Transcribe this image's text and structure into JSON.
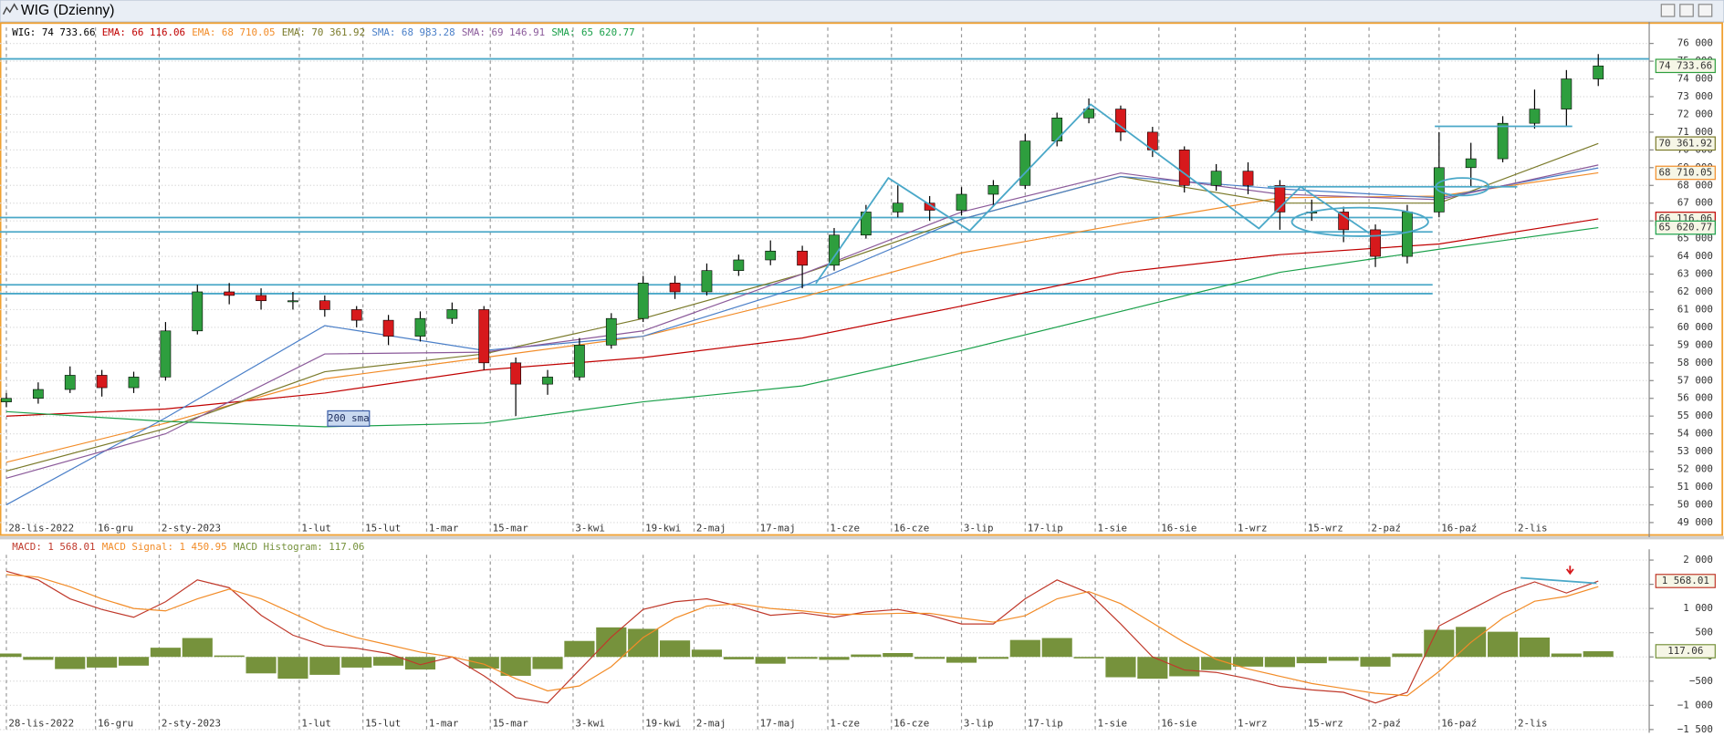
{
  "window": {
    "title": "WIG (Dzienny)"
  },
  "chart_data": [
    {
      "type": "candlestick",
      "xlim": [
        -1,
        258
      ],
      "ylim": [
        48300,
        76900
      ],
      "xticks": [
        {
          "value": 0,
          "label": "28-lis-2022"
        },
        {
          "value": 14,
          "label": "16-gru"
        },
        {
          "value": 24,
          "label": "2-sty-2023"
        },
        {
          "value": 46,
          "label": "1-lut"
        },
        {
          "value": 56,
          "label": "15-lut"
        },
        {
          "value": 66,
          "label": "1-mar"
        },
        {
          "value": 76,
          "label": "15-mar"
        },
        {
          "value": 89,
          "label": "3-kwi"
        },
        {
          "value": 100,
          "label": "19-kwi"
        },
        {
          "value": 108,
          "label": "2-maj"
        },
        {
          "value": 118,
          "label": "17-maj"
        },
        {
          "value": 129,
          "label": "1-cze"
        },
        {
          "value": 139,
          "label": "16-cze"
        },
        {
          "value": 150,
          "label": "3-lip"
        },
        {
          "value": 160,
          "label": "17-lip"
        },
        {
          "value": 171,
          "label": "1-sie"
        },
        {
          "value": 181,
          "label": "16-sie"
        },
        {
          "value": 193,
          "label": "1-wrz"
        },
        {
          "value": 204,
          "label": "15-wrz"
        },
        {
          "value": 214,
          "label": "2-paź"
        },
        {
          "value": 225,
          "label": "16-paź"
        },
        {
          "value": 237,
          "label": "2-lis"
        }
      ],
      "yticks": [
        {
          "value": 76000,
          "label": "76 000"
        },
        {
          "value": 75000,
          "label": "75 000"
        },
        {
          "value": 74000,
          "label": "74 000"
        },
        {
          "value": 73000,
          "label": "73 000"
        },
        {
          "value": 72000,
          "label": "72 000"
        },
        {
          "value": 71000,
          "label": "71 000"
        },
        {
          "value": 70000,
          "label": "70 000"
        },
        {
          "value": 69000,
          "label": "69 000"
        },
        {
          "value": 68000,
          "label": "68 000"
        },
        {
          "value": 67000,
          "label": "67 000"
        },
        {
          "value": 66000,
          "label": "66 000"
        },
        {
          "value": 65000,
          "label": "65 000"
        },
        {
          "value": 64000,
          "label": "64 000"
        },
        {
          "value": 63000,
          "label": "63 000"
        },
        {
          "value": 62000,
          "label": "62 000"
        },
        {
          "value": 61000,
          "label": "61 000"
        },
        {
          "value": 60000,
          "label": "60 000"
        },
        {
          "value": 59000,
          "label": "59 000"
        },
        {
          "value": 58000,
          "label": "58 000"
        },
        {
          "value": 57000,
          "label": "57 000"
        },
        {
          "value": 56000,
          "label": "56 000"
        },
        {
          "value": 55000,
          "label": "55 000"
        },
        {
          "value": 54000,
          "label": "54 000"
        },
        {
          "value": 53000,
          "label": "53 000"
        },
        {
          "value": 52000,
          "label": "52 000"
        },
        {
          "value": 51000,
          "label": "51 000"
        },
        {
          "value": 50000,
          "label": "50 000"
        },
        {
          "value": 49000,
          "label": "49 000"
        }
      ],
      "grid": true,
      "candles": {
        "legend": "WIG: 74 733.66",
        "color": "#000000",
        "up_color": "#2e9e3e",
        "down_color": "#d7191c",
        "last_label": "74 733.66",
        "x": [
          0,
          5,
          10,
          15,
          20,
          25,
          30,
          35,
          40,
          45,
          50,
          55,
          60,
          65,
          70,
          75,
          80,
          85,
          90,
          95,
          100,
          105,
          110,
          115,
          120,
          125,
          130,
          135,
          140,
          145,
          150,
          155,
          160,
          165,
          170,
          175,
          180,
          185,
          190,
          195,
          200,
          205,
          210,
          215,
          220,
          225,
          230,
          235,
          240,
          245,
          250
        ],
        "open": [
          55800,
          56000,
          56500,
          57300,
          56600,
          57200,
          59800,
          62000,
          61800,
          61500,
          61500,
          61000,
          60400,
          59500,
          60500,
          61000,
          58000,
          56800,
          57200,
          59000,
          60500,
          62500,
          62000,
          63200,
          63800,
          64300,
          63500,
          65200,
          66500,
          67000,
          66600,
          67500,
          68000,
          70500,
          71800,
          72300,
          71000,
          70000,
          68000,
          68800,
          68000,
          66500,
          66500,
          65500,
          64000,
          66500,
          69000,
          69500,
          71500,
          72300,
          74000
        ],
        "high": [
          56300,
          56900,
          57800,
          57600,
          57500,
          60300,
          62400,
          62500,
          62200,
          62000,
          61800,
          61200,
          60700,
          60900,
          61400,
          61200,
          58300,
          57600,
          59400,
          60800,
          62900,
          62900,
          63600,
          64100,
          64900,
          64600,
          65600,
          66900,
          68000,
          67400,
          67900,
          68300,
          70900,
          72100,
          72900,
          72500,
          71300,
          70200,
          69200,
          69300,
          68300,
          67200,
          66800,
          65800,
          66900,
          71000,
          70400,
          71900,
          73400,
          74500,
          75400
        ],
        "low": [
          55500,
          55700,
          56300,
          56100,
          56300,
          57000,
          59600,
          61300,
          61000,
          61000,
          60600,
          60000,
          59000,
          59200,
          60200,
          57600,
          55000,
          56200,
          57000,
          58800,
          60300,
          61600,
          61800,
          62900,
          63500,
          62200,
          63200,
          65000,
          66200,
          66000,
          66300,
          66800,
          67800,
          70200,
          71500,
          70500,
          69600,
          67600,
          67700,
          67500,
          65500,
          66000,
          64800,
          63400,
          63600,
          66200,
          67900,
          69300,
          71200,
          71300,
          73600
        ],
        "close": [
          56000,
          56500,
          57300,
          56600,
          57200,
          59800,
          62000,
          61800,
          61500,
          61500,
          61000,
          60400,
          59500,
          60500,
          61000,
          58000,
          56800,
          57200,
          59000,
          60500,
          62500,
          62000,
          63200,
          63800,
          64300,
          63500,
          65200,
          66500,
          67000,
          66600,
          67500,
          68000,
          70500,
          71800,
          72300,
          71000,
          70000,
          68000,
          68800,
          68000,
          66500,
          66500,
          65500,
          64000,
          66500,
          69000,
          69500,
          71500,
          72300,
          74000,
          74733.66
        ]
      },
      "x": [
        0,
        25,
        50,
        75,
        100,
        125,
        150,
        175,
        200,
        225,
        250
      ],
      "series": [
        {
          "legend": "EMA: 66 116.06",
          "color": "#c00000",
          "last_label": "66 116.06",
          "values": [
            55000,
            55400,
            56300,
            57600,
            58300,
            59400,
            61200,
            63100,
            64100,
            64700,
            66116.06
          ]
        },
        {
          "legend": "EMA: 68 710.05",
          "color": "#f28c28",
          "last_label": "68 710.05",
          "values": [
            52400,
            54600,
            57100,
            58300,
            59500,
            61700,
            64200,
            65800,
            67300,
            67400,
            68710.05
          ]
        },
        {
          "legend": "EMA: 70 361.92",
          "color": "#7a7a2a",
          "last_label": "70 361.92",
          "values": [
            51900,
            54300,
            57500,
            58500,
            60500,
            63000,
            66100,
            68500,
            67000,
            67000,
            70361.92
          ]
        },
        {
          "legend": "SMA: 68 983.28",
          "color": "#4a7fc8",
          "values": [
            50000,
            54900,
            60100,
            58700,
            59500,
            62300,
            66100,
            68500,
            67800,
            67300,
            68983.28
          ]
        },
        {
          "legend": "SMA: 69 146.91",
          "color": "#8b5a9a",
          "values": [
            51500,
            54000,
            58500,
            58600,
            59800,
            63000,
            66500,
            68700,
            67500,
            67200,
            69146.91
          ]
        },
        {
          "legend": "SMA: 65 620.77",
          "color": "#1aa04a",
          "last_label": "65 620.77",
          "values": [
            55250,
            54700,
            54400,
            54600,
            55800,
            56700,
            58700,
            60900,
            63100,
            64400,
            65620.77
          ]
        }
      ],
      "levels": {
        "color": "#4aa8c8",
        "values": [
          75130,
          66190,
          65380,
          62400,
          61900
        ]
      },
      "annotation": "200 sma"
    },
    {
      "type": "macd",
      "xlim": [
        -1,
        258
      ],
      "ylim": [
        -1520,
        2110
      ],
      "xticks": [
        {
          "value": 0,
          "label": "28-lis-2022"
        },
        {
          "value": 14,
          "label": "16-gru"
        },
        {
          "value": 24,
          "label": "2-sty-2023"
        },
        {
          "value": 46,
          "label": "1-lut"
        },
        {
          "value": 56,
          "label": "15-lut"
        },
        {
          "value": 66,
          "label": "1-mar"
        },
        {
          "value": 76,
          "label": "15-mar"
        },
        {
          "value": 89,
          "label": "3-kwi"
        },
        {
          "value": 100,
          "label": "19-kwi"
        },
        {
          "value": 108,
          "label": "2-maj"
        },
        {
          "value": 118,
          "label": "17-maj"
        },
        {
          "value": 129,
          "label": "1-cze"
        },
        {
          "value": 139,
          "label": "16-cze"
        },
        {
          "value": 150,
          "label": "3-lip"
        },
        {
          "value": 160,
          "label": "17-lip"
        },
        {
          "value": 171,
          "label": "1-sie"
        },
        {
          "value": 181,
          "label": "16-sie"
        },
        {
          "value": 193,
          "label": "1-wrz"
        },
        {
          "value": 204,
          "label": "15-wrz"
        },
        {
          "value": 214,
          "label": "2-paź"
        },
        {
          "value": 225,
          "label": "16-paź"
        },
        {
          "value": 237,
          "label": "2-lis"
        }
      ],
      "yticks": [
        {
          "value": 2000,
          "label": "2 000"
        },
        {
          "value": 1500,
          "label": "1 500"
        },
        {
          "value": 1000,
          "label": "1 000"
        },
        500,
        0,
        {
          "value": -500,
          "label": "−500"
        },
        {
          "value": -1000,
          "label": "−1 000"
        },
        {
          "value": -1500,
          "label": "−1 500"
        }
      ],
      "grid": true,
      "x": [
        0,
        5,
        10,
        15,
        20,
        25,
        30,
        35,
        40,
        45,
        50,
        55,
        60,
        65,
        70,
        75,
        80,
        85,
        90,
        95,
        100,
        105,
        110,
        115,
        120,
        125,
        130,
        135,
        140,
        145,
        150,
        155,
        160,
        165,
        170,
        175,
        180,
        185,
        190,
        195,
        200,
        205,
        210,
        215,
        220,
        225,
        230,
        235,
        240,
        245,
        250
      ],
      "series": [
        {
          "legend": "MACD: 1 568.01",
          "color": "#c0392b",
          "style": "line",
          "last_label": "1 568.01",
          "values": [
            1770,
            1590,
            1200,
            980,
            820,
            1140,
            1590,
            1430,
            860,
            450,
            230,
            180,
            70,
            -160,
            0,
            -390,
            -840,
            -950,
            -270,
            410,
            980,
            1140,
            1200,
            1050,
            860,
            910,
            820,
            930,
            980,
            860,
            680,
            680,
            1200,
            1590,
            1320,
            680,
            0,
            -270,
            -320,
            -450,
            -610,
            -680,
            -730,
            -950,
            -730,
            640,
            980,
            1320,
            1550,
            1320,
            1568.01
          ]
        },
        {
          "legend": "MACD Signal: 1 450.95",
          "color": "#f28c28",
          "style": "line",
          "values": [
            1700,
            1650,
            1450,
            1200,
            1000,
            950,
            1200,
            1400,
            1200,
            900,
            600,
            400,
            250,
            100,
            0,
            -150,
            -450,
            -700,
            -600,
            -200,
            400,
            800,
            1050,
            1100,
            1000,
            950,
            880,
            880,
            900,
            900,
            800,
            720,
            850,
            1200,
            1350,
            1100,
            700,
            300,
            -50,
            -250,
            -400,
            -550,
            -650,
            -750,
            -800,
            -300,
            300,
            800,
            1150,
            1250,
            1450.95
          ]
        },
        {
          "legend": "MACD Histogram: 117.06",
          "color": "#76923c",
          "style": "bar",
          "last_label": "117.06",
          "values": [
            70,
            -60,
            -250,
            -220,
            -180,
            190,
            390,
            30,
            -340,
            -450,
            -370,
            -220,
            -180,
            -260,
            0,
            -240,
            -390,
            -250,
            330,
            610,
            580,
            340,
            150,
            -50,
            -140,
            -40,
            -60,
            50,
            80,
            -40,
            -120,
            -40,
            350,
            390,
            -30,
            -420,
            -450,
            -400,
            -270,
            -200,
            -210,
            -130,
            -80,
            -200,
            70,
            560,
            620,
            520,
            400,
            70,
            117.06
          ]
        }
      ]
    }
  ]
}
